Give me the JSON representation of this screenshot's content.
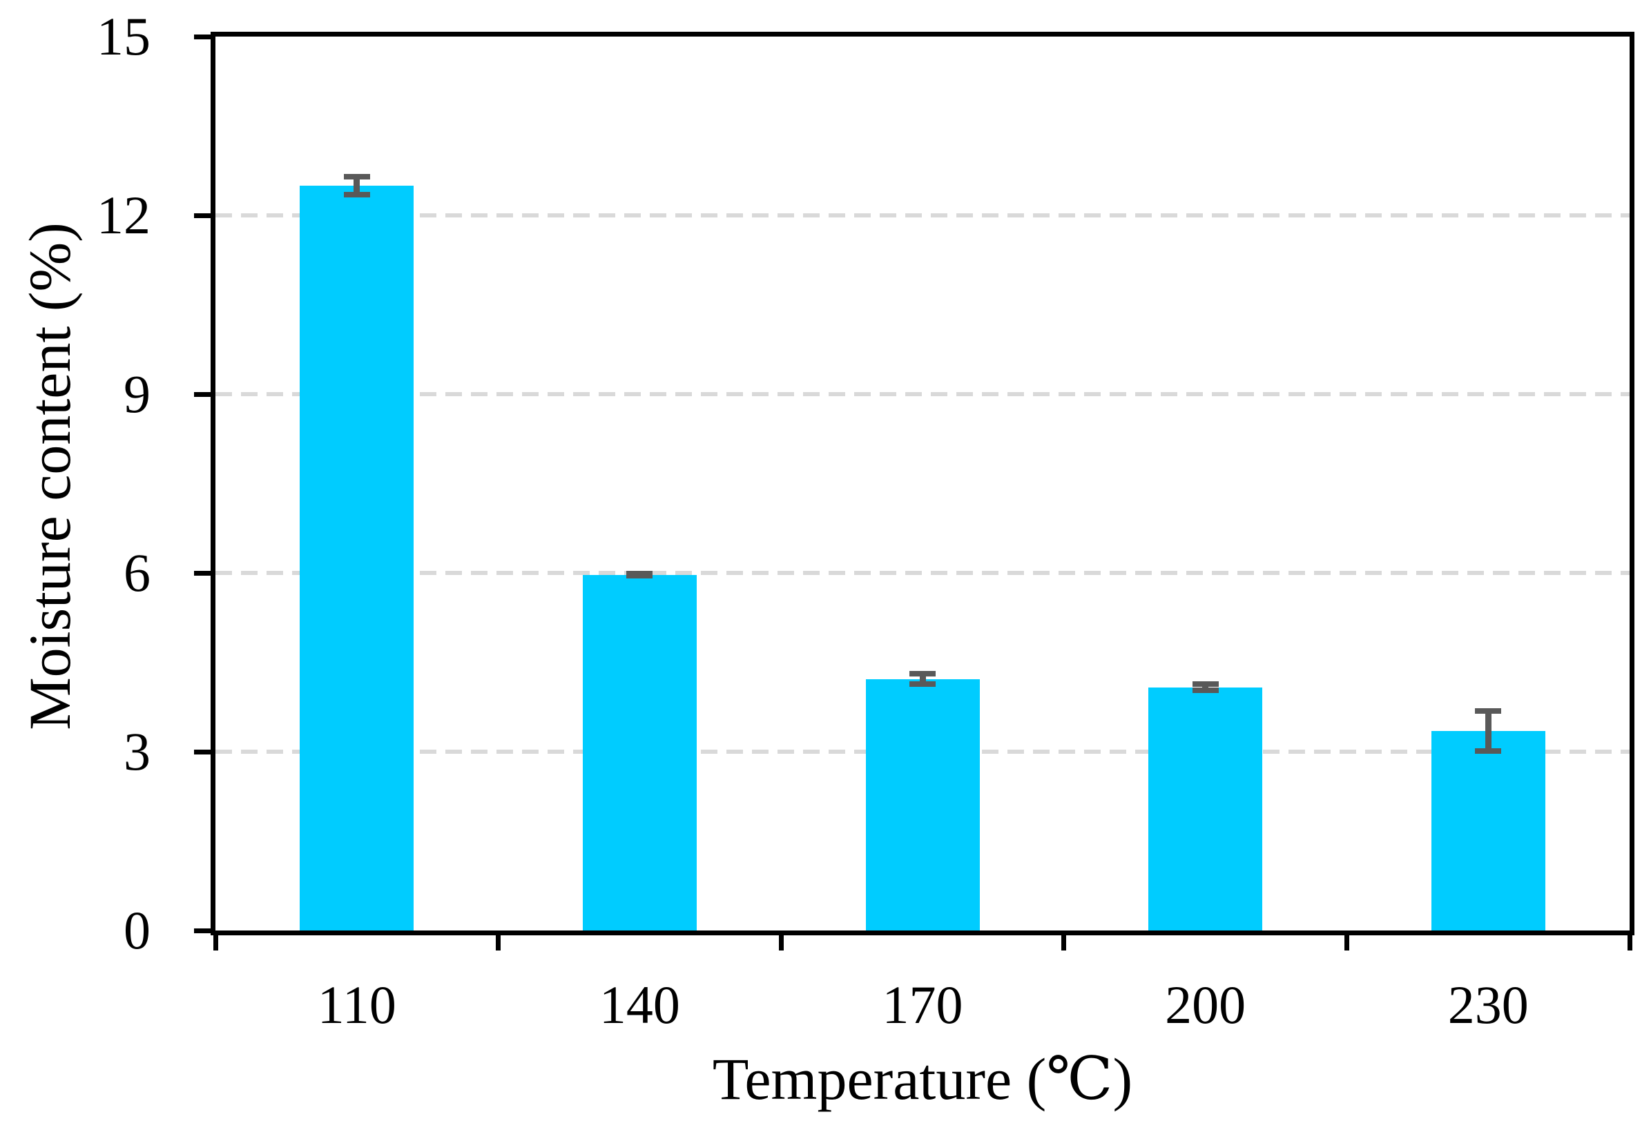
{
  "chart_data": {
    "type": "bar",
    "title": "",
    "xlabel": "Temperature (℃)",
    "ylabel": "Moisture content (%)",
    "categories": [
      "110",
      "140",
      "170",
      "200",
      "230"
    ],
    "values": [
      12.5,
      5.97,
      4.22,
      4.08,
      3.35
    ],
    "error_bars": [
      0.2,
      0.06,
      0.13,
      0.1,
      0.38
    ],
    "ylim": [
      0,
      15
    ],
    "yticks": [
      "0",
      "3",
      "6",
      "9",
      "12",
      "15"
    ],
    "grid": "horizontal-dashed",
    "legend_position": "none",
    "colors": {
      "bar_fill": "#00CCFF",
      "error_bar": "#595959",
      "gridline": "#D9D9D9",
      "axis": "#000000",
      "text": "#000000",
      "background": "#FFFFFF"
    }
  }
}
